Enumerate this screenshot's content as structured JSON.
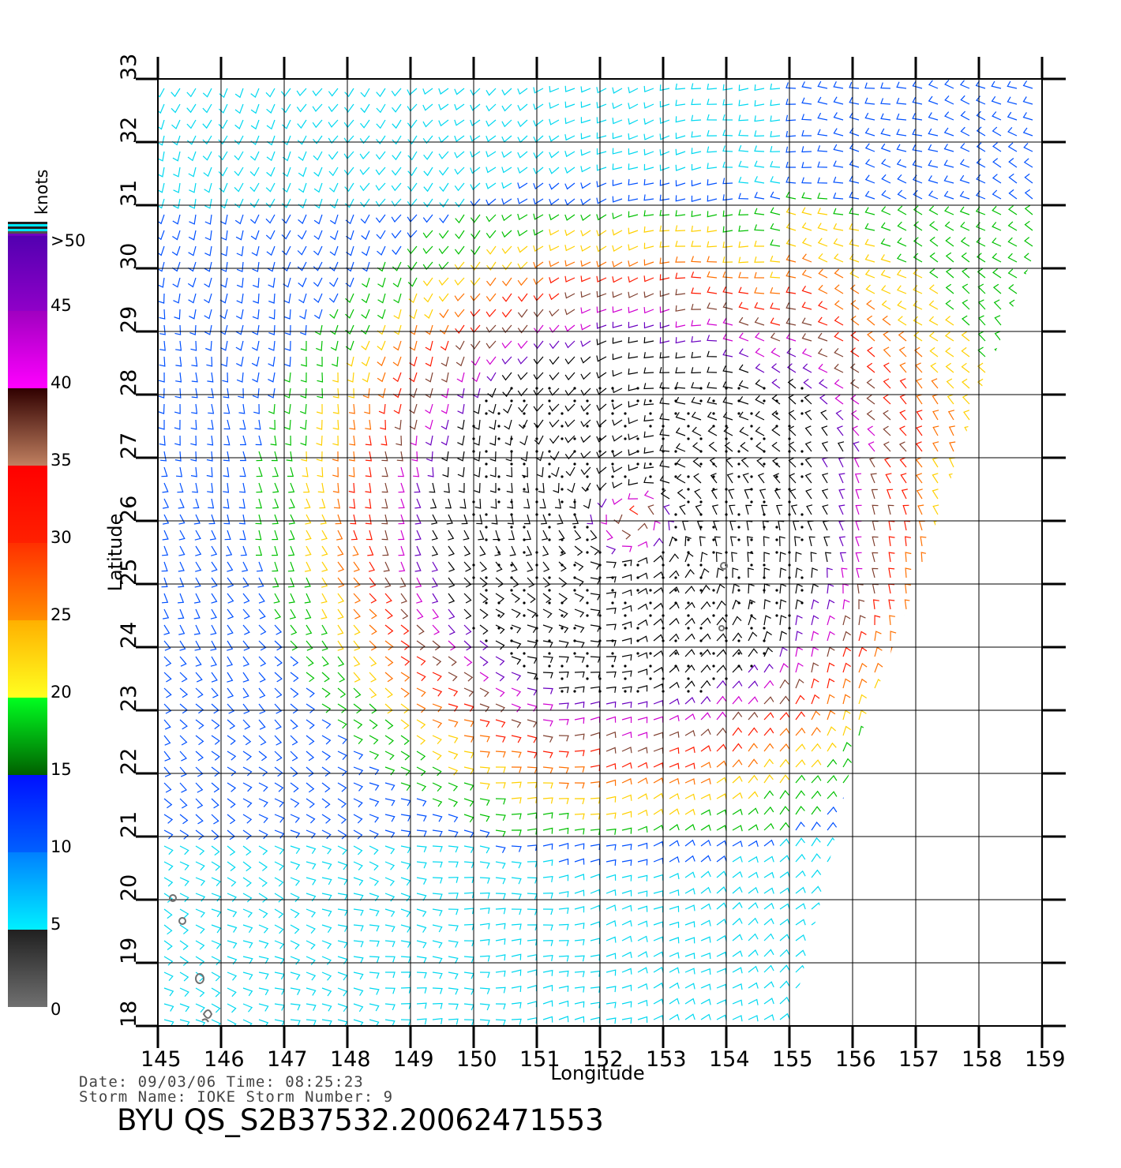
{
  "map": {
    "lon_range": [
      145,
      159
    ],
    "lat_range": [
      18,
      33
    ],
    "lon_ticks": [
      "145",
      "146",
      "147",
      "148",
      "149",
      "150",
      "151",
      "152",
      "153",
      "154",
      "155",
      "156",
      "157",
      "158",
      "159"
    ],
    "lat_ticks": [
      "18",
      "19",
      "20",
      "21",
      "22",
      "23",
      "24",
      "25",
      "26",
      "27",
      "28",
      "29",
      "30",
      "31",
      "32",
      "33"
    ],
    "xlabel": "Longitude",
    "ylabel": "Latitude",
    "storm_center": {
      "lon": 152.5,
      "lat": 26.0
    },
    "vector_type": "wind barbs",
    "swath_right_edge_lat": 24.0
  },
  "colorbar": {
    "unit": "knots",
    "ticks": [
      {
        "label": "0",
        "value": 0
      },
      {
        "label": "5",
        "value": 5
      },
      {
        "label": "10",
        "value": 10
      },
      {
        "label": "15",
        "value": 15
      },
      {
        "label": "20",
        "value": 20
      },
      {
        "label": "25",
        "value": 25
      },
      {
        "label": "30",
        "value": 30
      },
      {
        "label": "35",
        "value": 35
      },
      {
        "label": "40",
        "value": 40
      },
      {
        "label": "45",
        "value": 45
      },
      {
        "label": ">50",
        "value": 50
      }
    ],
    "colors": {
      "0-5": "#606060",
      "5-10": "#00e8ff",
      "10-15": "#0050ff",
      "15-20": "#00ff10",
      "20-25": "#ffd000",
      "25-30": "#ff5000",
      "30-35": "#ff1010",
      "35-40": "#503020",
      "40-45": "#ff00ff",
      "45-50": "#7000c0",
      ">50": "#000000"
    }
  },
  "info": {
    "date_line": "Date: 09/03/06   Time: 08:25:23",
    "storm_line": "Storm  Name: IOKE   Storm  Number: 9",
    "product_id": "BYU  QS_S2B37532.20062471553"
  }
}
